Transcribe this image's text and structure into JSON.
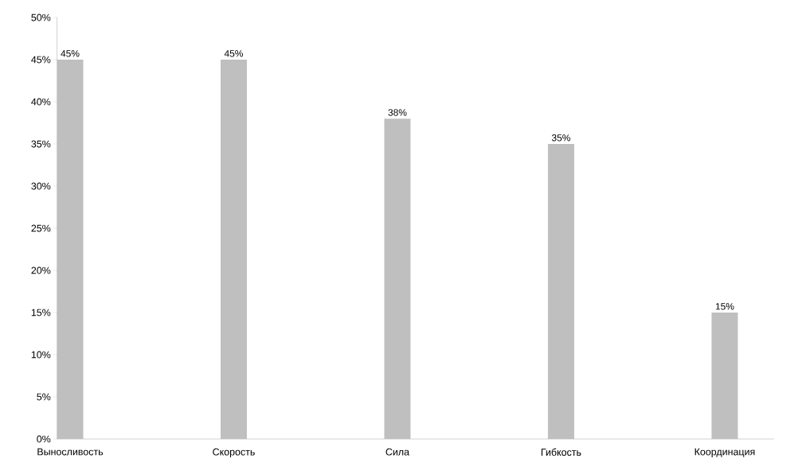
{
  "chart_data": {
    "type": "bar",
    "categories": [
      "Выносливость",
      "Скорость",
      "Сила",
      "Гибкость",
      "Координация"
    ],
    "values": [
      45,
      45,
      38,
      35,
      15
    ],
    "value_labels": [
      "45%",
      "45%",
      "38%",
      "35%",
      "15%"
    ],
    "color": "#bfbfbf",
    "ylim": [
      0,
      50
    ],
    "yticks": [
      {
        "value": 0,
        "label": "0%"
      },
      {
        "value": 5,
        "label": "5%"
      },
      {
        "value": 10,
        "label": "10%"
      },
      {
        "value": 15,
        "label": "15%"
      },
      {
        "value": 20,
        "label": "20%"
      },
      {
        "value": 25,
        "label": "25%"
      },
      {
        "value": 30,
        "label": "30%"
      },
      {
        "value": 35,
        "label": "35%"
      },
      {
        "value": 40,
        "label": "40%"
      },
      {
        "value": 45,
        "label": "45%"
      },
      {
        "value": 50,
        "label": "50%"
      }
    ]
  }
}
